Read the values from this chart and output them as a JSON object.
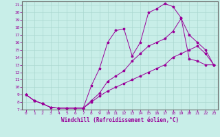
{
  "title": "",
  "xlabel": "Windchill (Refroidissement éolien,°C)",
  "background_color": "#c8eee8",
  "line_color": "#990099",
  "xlim": [
    -0.5,
    23.5
  ],
  "ylim": [
    7,
    21.5
  ],
  "xticks": [
    0,
    1,
    2,
    3,
    4,
    5,
    6,
    7,
    8,
    9,
    10,
    11,
    12,
    13,
    14,
    15,
    16,
    17,
    18,
    19,
    20,
    21,
    22,
    23
  ],
  "yticks": [
    7,
    8,
    9,
    10,
    11,
    12,
    13,
    14,
    15,
    16,
    17,
    18,
    19,
    20,
    21
  ],
  "line1_x": [
    0,
    1,
    2,
    3,
    4,
    5,
    6,
    7,
    8,
    9,
    10,
    11,
    12,
    13,
    14,
    15,
    16,
    17,
    18,
    19,
    20,
    21,
    22,
    23
  ],
  "line1_y": [
    9.0,
    8.2,
    7.8,
    7.3,
    7.2,
    7.2,
    7.2,
    7.2,
    10.2,
    12.5,
    16.0,
    17.6,
    17.8,
    14.2,
    16.0,
    20.0,
    20.5,
    21.2,
    20.8,
    19.3,
    13.8,
    13.5,
    13.0,
    13.0
  ],
  "line2_x": [
    0,
    1,
    2,
    3,
    4,
    5,
    6,
    7,
    8,
    9,
    10,
    11,
    12,
    13,
    14,
    15,
    16,
    17,
    18,
    19,
    20,
    21,
    22,
    23
  ],
  "line2_y": [
    9.0,
    8.2,
    7.8,
    7.3,
    7.2,
    7.2,
    7.2,
    7.2,
    8.2,
    9.2,
    10.8,
    11.5,
    12.2,
    13.5,
    14.5,
    15.5,
    16.0,
    16.5,
    17.5,
    19.2,
    17.0,
    16.0,
    15.0,
    13.0
  ],
  "line3_x": [
    0,
    1,
    2,
    3,
    4,
    5,
    6,
    7,
    8,
    9,
    10,
    11,
    12,
    13,
    14,
    15,
    16,
    17,
    18,
    19,
    20,
    21,
    22,
    23
  ],
  "line3_y": [
    9.0,
    8.2,
    7.8,
    7.3,
    7.2,
    7.2,
    7.2,
    7.2,
    8.0,
    8.8,
    9.5,
    10.0,
    10.5,
    11.0,
    11.5,
    12.0,
    12.5,
    13.0,
    14.0,
    14.5,
    15.0,
    15.5,
    14.5,
    13.0
  ]
}
